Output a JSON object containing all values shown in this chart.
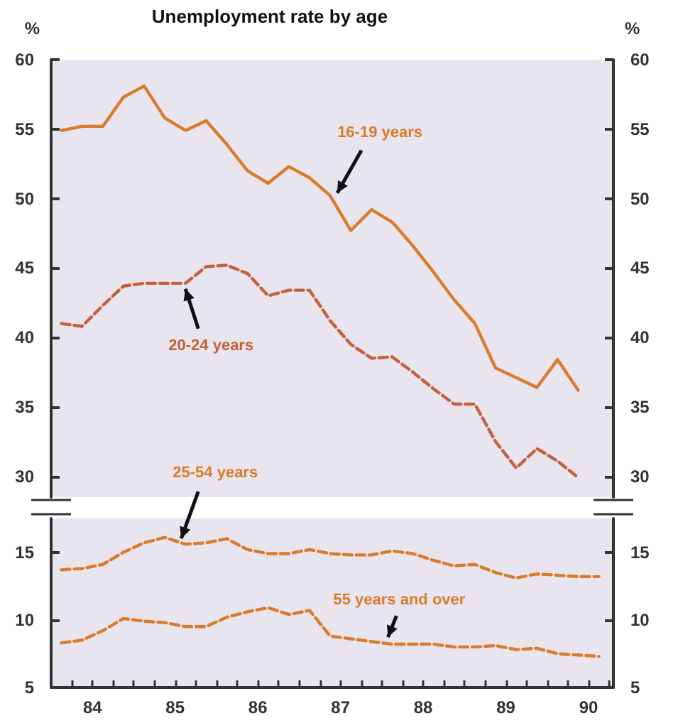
{
  "chart_data": [
    {
      "type": "line",
      "title": "Unemployment rate by age",
      "ylabel": "%",
      "y2label": "%",
      "tick_labels": "y",
      "xlim": [
        83.5,
        90.3
      ],
      "ylim": [
        28.5,
        60
      ],
      "yticks": [
        30,
        35,
        40,
        45,
        50,
        55,
        60
      ],
      "y2lim": [
        28.5,
        60
      ],
      "y2ticks": [
        30,
        35,
        40,
        45,
        50,
        55,
        60
      ],
      "xticks": [
        84,
        85,
        86,
        87,
        88,
        89,
        90
      ],
      "x": [
        83.625,
        83.875,
        84.125,
        84.375,
        84.625,
        84.875,
        85.125,
        85.375,
        85.625,
        85.875,
        86.125,
        86.375,
        86.625,
        86.875,
        87.125,
        87.375,
        87.625,
        87.875,
        88.125,
        88.375,
        88.625,
        88.875,
        89.125,
        89.375,
        89.625,
        89.875
      ],
      "series": [
        {
          "name": "16-19 years",
          "color": "#d97b2b",
          "line_style": "solid",
          "values": [
            54.9,
            55.2,
            55.2,
            57.3,
            58.1,
            55.8,
            54.9,
            55.6,
            53.9,
            52.0,
            51.1,
            52.3,
            51.5,
            50.2,
            47.7,
            49.2,
            48.3,
            46.6,
            44.7,
            42.7,
            41.0,
            37.8,
            37.1,
            36.4,
            38.4,
            36.2
          ]
        },
        {
          "name": "20-24 years",
          "color": "#c4603c",
          "line_style": "dashed",
          "values": [
            41.0,
            40.8,
            42.3,
            43.7,
            43.9,
            43.9,
            43.9,
            45.1,
            45.2,
            44.6,
            43.0,
            43.4,
            43.4,
            41.2,
            39.5,
            38.5,
            38.6,
            37.5,
            36.3,
            35.2,
            35.2,
            32.5,
            30.6,
            32.0,
            31.1,
            29.9
          ]
        }
      ]
    },
    {
      "type": "line",
      "xlim": [
        83.5,
        90.3
      ],
      "ylim": [
        5,
        17.5
      ],
      "yticks": [
        5,
        10,
        15
      ],
      "y2lim": [
        5,
        17.5
      ],
      "y2ticks": [
        5,
        10,
        15
      ],
      "xticks": [
        {
          "value": 83.5,
          "label": null
        },
        {
          "value": 83.75,
          "label": null
        },
        84,
        {
          "value": 84.25,
          "label": null
        },
        {
          "value": 84.5,
          "label": null
        },
        {
          "value": 84.75,
          "label": null
        },
        85,
        {
          "value": 85.25,
          "label": null
        },
        {
          "value": 85.5,
          "label": null
        },
        {
          "value": 85.75,
          "label": null
        },
        86,
        {
          "value": 86.25,
          "label": null
        },
        {
          "value": 86.5,
          "label": null
        },
        {
          "value": 86.75,
          "label": null
        },
        87,
        {
          "value": 87.25,
          "label": null
        },
        {
          "value": 87.5,
          "label": null
        },
        {
          "value": 87.75,
          "label": null
        },
        88,
        {
          "value": 88.25,
          "label": null
        },
        {
          "value": 88.5,
          "label": null
        },
        {
          "value": 88.75,
          "label": null
        },
        89,
        {
          "value": 89.25,
          "label": null
        },
        {
          "value": 89.5,
          "label": null
        },
        {
          "value": 89.75,
          "label": null
        },
        90,
        {
          "value": 90.25,
          "label": null
        }
      ],
      "x": [
        83.625,
        83.875,
        84.125,
        84.375,
        84.625,
        84.875,
        85.125,
        85.375,
        85.625,
        85.875,
        86.125,
        86.375,
        86.625,
        86.875,
        87.125,
        87.375,
        87.625,
        87.875,
        88.125,
        88.375,
        88.625,
        88.875,
        89.125,
        89.375,
        89.625,
        89.875,
        90.125
      ],
      "series": [
        {
          "name": "25-54 years",
          "color": "#d97b2b",
          "line_style": "dashed",
          "values": [
            13.7,
            13.8,
            14.1,
            15.0,
            15.7,
            16.1,
            15.6,
            15.7,
            16.0,
            15.2,
            14.9,
            14.9,
            15.2,
            14.9,
            14.8,
            14.8,
            15.1,
            14.9,
            14.4,
            14.0,
            14.1,
            13.5,
            13.1,
            13.4,
            13.3,
            13.2,
            13.2
          ]
        },
        {
          "name": "55 years and over",
          "color": "#d97b2b",
          "line_style": "dashed",
          "values": [
            8.3,
            8.5,
            9.2,
            10.1,
            9.9,
            9.8,
            9.5,
            9.5,
            10.2,
            10.6,
            10.9,
            10.4,
            10.7,
            8.8,
            8.6,
            8.4,
            8.2,
            8.2,
            8.2,
            8.0,
            8.0,
            8.1,
            7.8,
            7.9,
            7.5,
            7.4,
            7.3
          ]
        }
      ]
    }
  ]
}
